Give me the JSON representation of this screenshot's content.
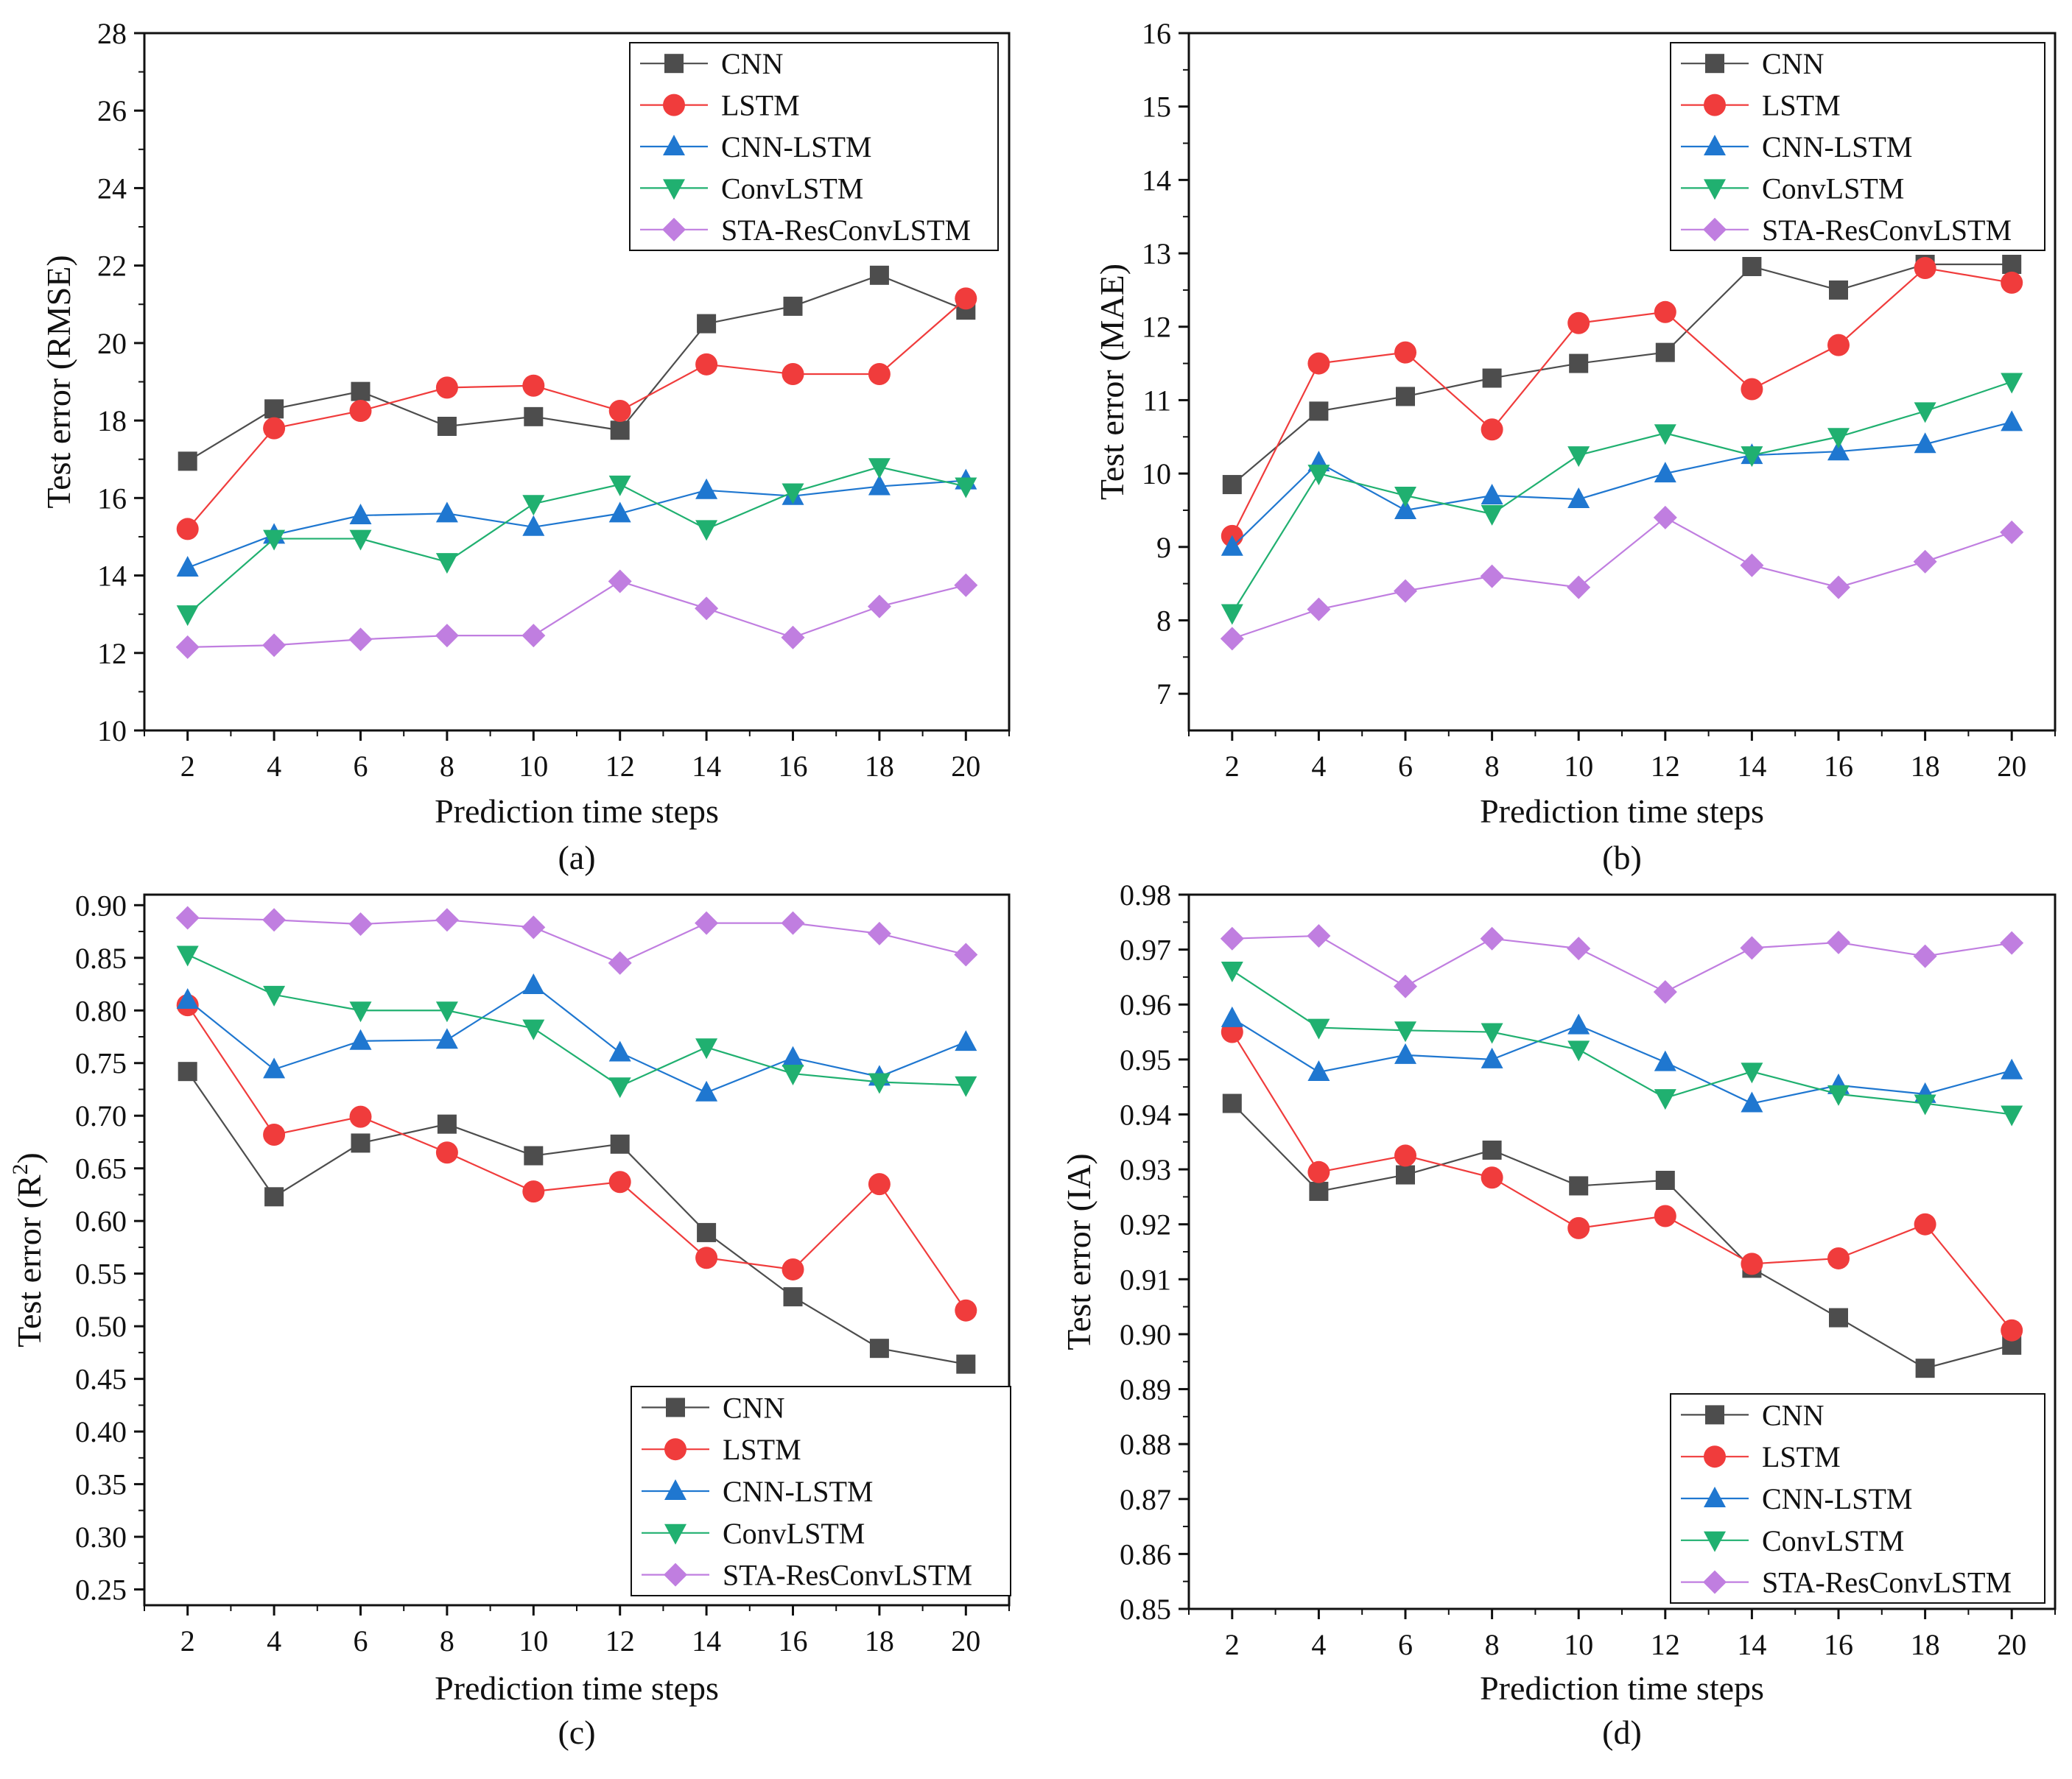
{
  "figure": {
    "series_styles": [
      {
        "name": "CNN",
        "color": "#4d4d4d",
        "marker": "square"
      },
      {
        "name": "LSTM",
        "color": "#f03c3c",
        "marker": "circle"
      },
      {
        "name": "CNN-LSTM",
        "color": "#1f77d0",
        "marker": "triangle-up"
      },
      {
        "name": "ConvLSTM",
        "color": "#20b070",
        "marker": "triangle-down"
      },
      {
        "name": "STA-ResConvLSTM",
        "color": "#c07ee0",
        "marker": "diamond"
      }
    ]
  },
  "chart_data": [
    {
      "panel": "(a)",
      "type": "line",
      "title": "",
      "xlabel": "Prediction time steps",
      "ylabel_main": "Test error (RMSE)",
      "ylabel_sup": "",
      "ylabel_tail": "",
      "x": [
        2,
        4,
        6,
        8,
        10,
        12,
        14,
        16,
        18,
        20
      ],
      "xticks": [
        "2",
        "4",
        "6",
        "8",
        "10",
        "12",
        "14",
        "16",
        "18",
        "20"
      ],
      "ylim": [
        10,
        28
      ],
      "yticks": [
        "10",
        "12",
        "14",
        "16",
        "18",
        "20",
        "22",
        "24",
        "26",
        "28"
      ],
      "legend_position": "top-right",
      "series": [
        {
          "name": "CNN",
          "values": [
            16.95,
            18.3,
            18.75,
            17.85,
            18.1,
            17.75,
            20.5,
            20.95,
            21.75,
            20.85
          ]
        },
        {
          "name": "LSTM",
          "values": [
            15.2,
            17.8,
            18.25,
            18.85,
            18.9,
            18.25,
            19.45,
            19.2,
            19.2,
            21.15
          ]
        },
        {
          "name": "CNN-LSTM",
          "values": [
            14.2,
            15.05,
            15.55,
            15.6,
            15.25,
            15.6,
            16.2,
            16.05,
            16.3,
            16.45
          ]
        },
        {
          "name": "ConvLSTM",
          "values": [
            13.0,
            14.95,
            14.95,
            14.35,
            15.85,
            16.35,
            15.2,
            16.15,
            16.8,
            16.3
          ]
        },
        {
          "name": "STA-ResConvLSTM",
          "values": [
            12.15,
            12.2,
            12.35,
            12.45,
            12.45,
            13.85,
            13.15,
            12.4,
            13.2,
            13.75
          ]
        }
      ]
    },
    {
      "panel": "(b)",
      "type": "line",
      "title": "",
      "xlabel": "Prediction time steps",
      "ylabel_main": "Test error (MAE)",
      "ylabel_sup": "",
      "ylabel_tail": "",
      "x": [
        2,
        4,
        6,
        8,
        10,
        12,
        14,
        16,
        18,
        20
      ],
      "xticks": [
        "2",
        "4",
        "6",
        "8",
        "10",
        "12",
        "14",
        "16",
        "18",
        "20"
      ],
      "ylim": [
        6.5,
        16
      ],
      "yticks": [
        "7",
        "8",
        "9",
        "10",
        "11",
        "12",
        "13",
        "14",
        "15",
        "16"
      ],
      "legend_position": "top-right",
      "series": [
        {
          "name": "CNN",
          "values": [
            9.85,
            10.85,
            11.05,
            11.3,
            11.5,
            11.65,
            12.82,
            12.5,
            12.85,
            12.85
          ]
        },
        {
          "name": "LSTM",
          "values": [
            9.15,
            11.5,
            11.65,
            10.6,
            12.05,
            12.2,
            11.15,
            11.75,
            12.8,
            12.6
          ]
        },
        {
          "name": "CNN-LSTM",
          "values": [
            9.0,
            10.15,
            9.5,
            9.7,
            9.65,
            10.0,
            10.25,
            10.3,
            10.4,
            10.7
          ]
        },
        {
          "name": "ConvLSTM",
          "values": [
            8.1,
            10.0,
            9.7,
            9.45,
            10.25,
            10.55,
            10.25,
            10.5,
            10.85,
            11.25
          ]
        },
        {
          "name": "STA-ResConvLSTM",
          "values": [
            7.75,
            8.15,
            8.4,
            8.6,
            8.45,
            9.4,
            8.75,
            8.45,
            8.8,
            9.2
          ]
        }
      ]
    },
    {
      "panel": "(c)",
      "type": "line",
      "title": "",
      "xlabel": "Prediction time steps",
      "ylabel_main": "Test error (R",
      "ylabel_sup": "2",
      "ylabel_tail": ")",
      "x": [
        2,
        4,
        6,
        8,
        10,
        12,
        14,
        16,
        18,
        20
      ],
      "xticks": [
        "2",
        "4",
        "6",
        "8",
        "10",
        "12",
        "14",
        "16",
        "18",
        "20"
      ],
      "ylim": [
        0.235,
        0.91
      ],
      "yticks": [
        "0.25",
        "0.30",
        "0.35",
        "0.40",
        "0.45",
        "0.50",
        "0.55",
        "0.60",
        "0.65",
        "0.70",
        "0.75",
        "0.80",
        "0.85",
        "0.90"
      ],
      "legend_position": "bottom-right",
      "series": [
        {
          "name": "CNN",
          "values": [
            0.742,
            0.623,
            0.674,
            0.692,
            0.662,
            0.673,
            0.589,
            0.528,
            0.479,
            0.464
          ]
        },
        {
          "name": "LSTM",
          "values": [
            0.805,
            0.682,
            0.699,
            0.665,
            0.628,
            0.637,
            0.565,
            0.554,
            0.635,
            0.515
          ]
        },
        {
          "name": "CNN-LSTM",
          "values": [
            0.81,
            0.744,
            0.771,
            0.772,
            0.824,
            0.76,
            0.722,
            0.755,
            0.737,
            0.77
          ]
        },
        {
          "name": "ConvLSTM",
          "values": [
            0.853,
            0.815,
            0.8,
            0.8,
            0.783,
            0.728,
            0.765,
            0.74,
            0.732,
            0.729
          ]
        },
        {
          "name": "STA-ResConvLSTM",
          "values": [
            0.888,
            0.886,
            0.882,
            0.886,
            0.879,
            0.845,
            0.883,
            0.883,
            0.873,
            0.853
          ]
        }
      ]
    },
    {
      "panel": "(d)",
      "type": "line",
      "title": "",
      "xlabel": "Prediction time steps",
      "ylabel_main": "Test error (IA)",
      "ylabel_sup": "",
      "ylabel_tail": "",
      "x": [
        2,
        4,
        6,
        8,
        10,
        12,
        14,
        16,
        18,
        20
      ],
      "xticks": [
        "2",
        "4",
        "6",
        "8",
        "10",
        "12",
        "14",
        "16",
        "18",
        "20"
      ],
      "ylim": [
        0.85,
        0.98
      ],
      "yticks": [
        "0.85",
        "0.86",
        "0.87",
        "0.88",
        "0.89",
        "0.90",
        "0.91",
        "0.92",
        "0.93",
        "0.94",
        "0.95",
        "0.96",
        "0.97",
        "0.98"
      ],
      "legend_position": "bottom-right",
      "series": [
        {
          "name": "CNN",
          "values": [
            0.942,
            0.926,
            0.929,
            0.9335,
            0.927,
            0.928,
            0.912,
            0.903,
            0.8938,
            0.898
          ]
        },
        {
          "name": "LSTM",
          "values": [
            0.955,
            0.9295,
            0.9325,
            0.9285,
            0.9193,
            0.9215,
            0.9128,
            0.9138,
            0.92,
            0.9007
          ]
        },
        {
          "name": "CNN-LSTM",
          "values": [
            0.9575,
            0.9477,
            0.9508,
            0.95,
            0.9562,
            0.9495,
            0.942,
            0.9453,
            0.9437,
            0.948
          ]
        },
        {
          "name": "ConvLSTM",
          "values": [
            0.9662,
            0.9558,
            0.9553,
            0.955,
            0.9518,
            0.943,
            0.9478,
            0.9437,
            0.942,
            0.94
          ]
        },
        {
          "name": "STA-ResConvLSTM",
          "values": [
            0.972,
            0.9725,
            0.9633,
            0.972,
            0.9702,
            0.9623,
            0.9703,
            0.9713,
            0.9688,
            0.9712
          ]
        }
      ]
    }
  ]
}
